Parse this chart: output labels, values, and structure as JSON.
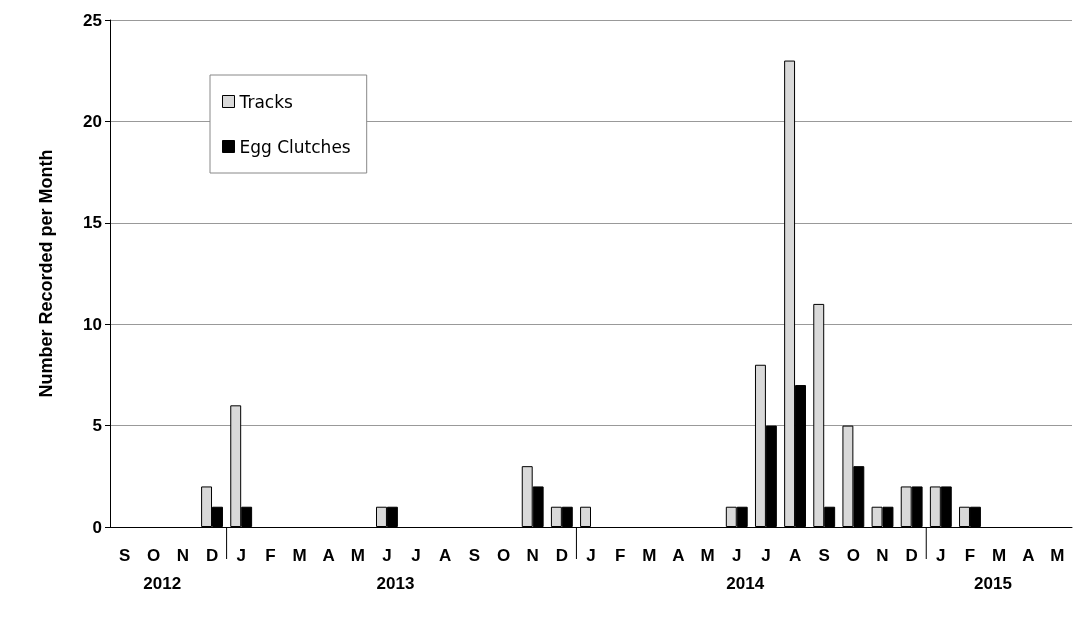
{
  "chart_data": {
    "type": "bar",
    "ylabel": "Number Recorded per Month",
    "categories": [
      "S",
      "O",
      "N",
      "D",
      "J",
      "F",
      "M",
      "A",
      "M",
      "J",
      "J",
      "A",
      "S",
      "O",
      "N",
      "D",
      "J",
      "F",
      "M",
      "A",
      "M",
      "J",
      "J",
      "A",
      "S",
      "O",
      "N",
      "D",
      "J",
      "F",
      "M",
      "A",
      "M"
    ],
    "series": [
      {
        "name": "Tracks",
        "color": "#d9d9d9",
        "values": [
          0,
          0,
          0,
          2,
          6,
          0,
          0,
          0,
          0,
          1,
          0,
          0,
          0,
          0,
          3,
          1,
          1,
          0,
          0,
          0,
          0,
          1,
          8,
          23,
          11,
          5,
          1,
          2,
          2,
          1,
          0,
          0,
          0
        ]
      },
      {
        "name": "Egg Clutches",
        "color": "#000000",
        "values": [
          0,
          0,
          0,
          1,
          1,
          0,
          0,
          0,
          0,
          1,
          0,
          0,
          0,
          0,
          2,
          1,
          0,
          0,
          0,
          0,
          0,
          1,
          5,
          7,
          1,
          3,
          1,
          2,
          2,
          1,
          0,
          0,
          0
        ]
      }
    ],
    "ylim": [
      0,
      25
    ],
    "yticks": [
      0,
      5,
      10,
      15,
      20,
      25
    ],
    "grid": "y",
    "legend": "top left",
    "annotations": [
      "2012",
      "2013",
      "2014",
      "2015"
    ]
  }
}
